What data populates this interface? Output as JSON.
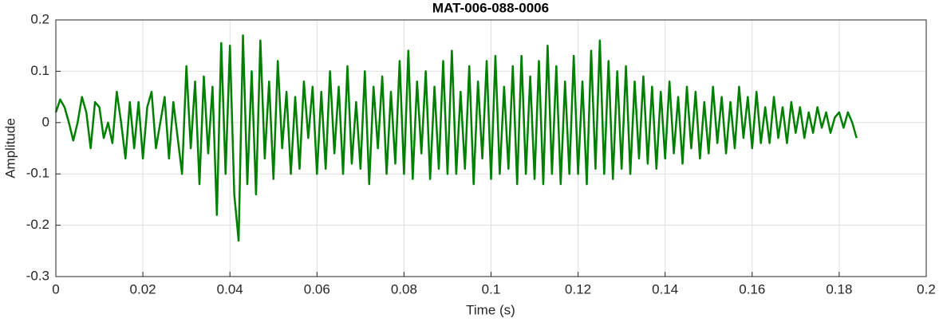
{
  "chart_data": {
    "type": "line",
    "title": "MAT-006-088-0006",
    "x_label": "Time (s)",
    "y_label": "Amplitude",
    "color": "#008000",
    "grid": true,
    "xlim": [
      0,
      0.2
    ],
    "xticks": [
      0,
      0.02,
      0.04,
      0.06,
      0.08,
      0.1,
      0.12,
      0.14,
      0.16,
      0.18,
      0.2
    ],
    "ylim": [
      -0.3,
      0.2
    ],
    "yticks": [
      -0.3,
      -0.2,
      -0.1,
      0,
      0.1,
      0.2
    ],
    "x": [
      0,
      0.001,
      0.002,
      0.003,
      0.004,
      0.005,
      0.006,
      0.007,
      0.008,
      0.009,
      0.01,
      0.011,
      0.012,
      0.013,
      0.014,
      0.015,
      0.016,
      0.017,
      0.018,
      0.019,
      0.02,
      0.021,
      0.022,
      0.023,
      0.024,
      0.025,
      0.026,
      0.027,
      0.028,
      0.029,
      0.03,
      0.031,
      0.032,
      0.033,
      0.034,
      0.035,
      0.036,
      0.037,
      0.038,
      0.039,
      0.04,
      0.041,
      0.042,
      0.043,
      0.044,
      0.045,
      0.046,
      0.047,
      0.048,
      0.049,
      0.05,
      0.051,
      0.052,
      0.053,
      0.054,
      0.055,
      0.056,
      0.057,
      0.058,
      0.059,
      0.06,
      0.061,
      0.062,
      0.063,
      0.064,
      0.065,
      0.066,
      0.067,
      0.068,
      0.069,
      0.07,
      0.071,
      0.072,
      0.073,
      0.074,
      0.075,
      0.076,
      0.077,
      0.078,
      0.079,
      0.08,
      0.081,
      0.082,
      0.083,
      0.084,
      0.085,
      0.086,
      0.087,
      0.088,
      0.089,
      0.09,
      0.091,
      0.092,
      0.093,
      0.094,
      0.095,
      0.096,
      0.097,
      0.098,
      0.099,
      0.1,
      0.101,
      0.102,
      0.103,
      0.104,
      0.105,
      0.106,
      0.107,
      0.108,
      0.109,
      0.11,
      0.111,
      0.112,
      0.113,
      0.114,
      0.115,
      0.116,
      0.117,
      0.118,
      0.119,
      0.12,
      0.121,
      0.122,
      0.123,
      0.124,
      0.125,
      0.126,
      0.127,
      0.128,
      0.129,
      0.13,
      0.131,
      0.132,
      0.133,
      0.134,
      0.135,
      0.136,
      0.137,
      0.138,
      0.139,
      0.14,
      0.141,
      0.142,
      0.143,
      0.144,
      0.145,
      0.146,
      0.147,
      0.148,
      0.149,
      0.15,
      0.151,
      0.152,
      0.153,
      0.154,
      0.155,
      0.156,
      0.157,
      0.158,
      0.159,
      0.16,
      0.161,
      0.162,
      0.163,
      0.164,
      0.165,
      0.166,
      0.167,
      0.168,
      0.169,
      0.17,
      0.171,
      0.172,
      0.173,
      0.174,
      0.175,
      0.176,
      0.177,
      0.178,
      0.179,
      0.18,
      0.181,
      0.182,
      0.183,
      0.184
    ],
    "values": [
      0.02,
      0.045,
      0.03,
      0,
      -0.035,
      0,
      0.05,
      0.02,
      -0.05,
      0.04,
      0.03,
      -0.03,
      0,
      -0.04,
      0.06,
      0,
      -0.07,
      0.04,
      -0.05,
      0.04,
      -0.07,
      0.03,
      0.06,
      -0.05,
      0,
      0.05,
      -0.07,
      0.04,
      -0.03,
      -0.1,
      0.11,
      -0.05,
      0.08,
      -0.12,
      0.09,
      -0.06,
      0.07,
      -0.18,
      0.155,
      -0.1,
      0.15,
      -0.14,
      -0.23,
      0.17,
      -0.12,
      0.1,
      -0.14,
      0.16,
      -0.07,
      0.08,
      -0.11,
      0.12,
      -0.05,
      0.06,
      -0.1,
      0.05,
      -0.09,
      0.08,
      -0.03,
      0.07,
      -0.1,
      0.06,
      -0.09,
      0.1,
      -0.06,
      0.07,
      -0.1,
      0.11,
      -0.08,
      0.04,
      -0.09,
      0.1,
      -0.12,
      0.07,
      -0.05,
      0.09,
      -0.1,
      0.06,
      -0.08,
      0.12,
      -0.1,
      0.14,
      -0.11,
      0.08,
      -0.06,
      0.1,
      -0.11,
      0.07,
      -0.09,
      0.12,
      -0.1,
      0.14,
      -0.1,
      0.06,
      -0.09,
      0.11,
      -0.12,
      0.08,
      -0.07,
      0.12,
      -0.11,
      0.13,
      -0.1,
      0.07,
      -0.09,
      0.11,
      -0.12,
      0.13,
      -0.1,
      0.09,
      -0.11,
      0.12,
      -0.12,
      0.15,
      -0.1,
      0.11,
      -0.12,
      0.08,
      -0.1,
      0.13,
      -0.1,
      0.08,
      -0.12,
      0.14,
      -0.09,
      0.16,
      -0.1,
      0.12,
      -0.11,
      0.1,
      -0.09,
      0.11,
      -0.1,
      0.08,
      -0.07,
      0.09,
      -0.08,
      0.07,
      -0.09,
      0.06,
      -0.07,
      0.08,
      -0.06,
      0.05,
      -0.08,
      0.07,
      -0.05,
      0.06,
      -0.07,
      0.04,
      -0.06,
      0.07,
      -0.04,
      0.05,
      -0.06,
      0.04,
      -0.05,
      0.07,
      -0.03,
      0.05,
      -0.05,
      0.06,
      -0.04,
      0.03,
      -0.04,
      0.05,
      -0.03,
      0.03,
      -0.04,
      0.04,
      -0.02,
      0.03,
      -0.03,
      0.02,
      -0.02,
      0.03,
      -0.01,
      0.02,
      -0.02,
      0.01,
      0.02,
      -0.01,
      0.02,
      0,
      -0.03
    ]
  }
}
